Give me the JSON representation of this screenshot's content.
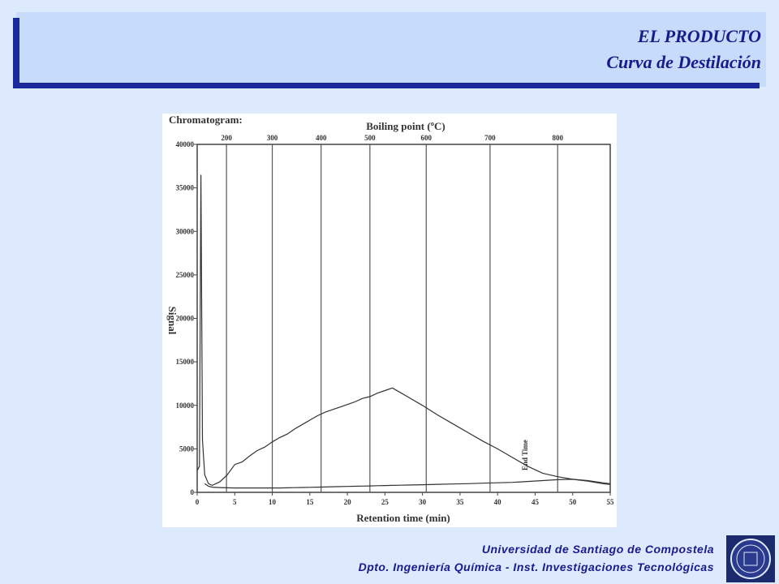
{
  "header": {
    "title": "EL PRODUCTO",
    "subtitle": "Curva de Destilación"
  },
  "footer": {
    "line1": "Universidad de Santiago de Compostela",
    "line2": "Dpto. Ingeniería Química - Inst. Investigaciones Tecnológicas"
  },
  "chart_data": {
    "type": "line",
    "title": "Chromatogram:",
    "x_label": "Retention time (min)",
    "y_label": "Signal",
    "x2_label": "Boiling point (ºC)",
    "annotation": "End Time",
    "x": [
      0,
      0.3,
      0.5,
      0.7,
      1,
      1.5,
      2,
      3,
      4,
      5,
      6,
      7,
      8,
      9,
      10,
      11,
      12,
      13,
      14,
      15,
      16,
      17,
      18,
      19,
      20,
      21,
      22,
      23,
      24,
      25,
      26,
      27,
      28,
      30,
      32,
      34,
      36,
      38,
      40,
      42,
      44,
      46,
      48,
      50,
      52,
      54,
      55
    ],
    "series": [
      {
        "color": "#333333",
        "values": [
          2500,
          3000,
          36500,
          6000,
          2000,
          1000,
          800,
          1200,
          2000,
          3200,
          3500,
          4200,
          4800,
          5200,
          5800,
          6300,
          6700,
          7300,
          7800,
          8300,
          8800,
          9200,
          9500,
          9800,
          10100,
          10400,
          10800,
          11000,
          11400,
          11700,
          12000,
          11500,
          11000,
          10000,
          8900,
          7900,
          6900,
          5900,
          5000,
          4000,
          3000,
          2200,
          1800,
          1500,
          1300,
          1000,
          900
        ]
      },
      {
        "color": "#333333",
        "values": [
          null,
          null,
          null,
          null,
          1000,
          700,
          600,
          550,
          520,
          500,
          500,
          500,
          500,
          500,
          500,
          500,
          520,
          540,
          560,
          580,
          600,
          620,
          640,
          660,
          680,
          700,
          720,
          740,
          760,
          780,
          800,
          820,
          840,
          880,
          920,
          960,
          1000,
          1050,
          1100,
          1150,
          1250,
          1350,
          1450,
          1500,
          1350,
          1100,
          1000
        ]
      }
    ],
    "xlim": [
      0,
      55
    ],
    "xticks": [
      0,
      5,
      10,
      15,
      20,
      25,
      30,
      35,
      40,
      45,
      50,
      55
    ],
    "ylim": [
      0,
      40000
    ],
    "yticks": [
      0,
      5000,
      10000,
      15000,
      20000,
      25000,
      30000,
      35000,
      40000
    ],
    "x2ticks": [
      {
        "value": 3.9,
        "label": "200"
      },
      {
        "value": 10,
        "label": "300"
      },
      {
        "value": 16.5,
        "label": "400"
      },
      {
        "value": 23,
        "label": "500"
      },
      {
        "value": 30.5,
        "label": "600"
      },
      {
        "value": 39,
        "label": "700"
      },
      {
        "value": 48,
        "label": "800"
      }
    ],
    "annotation_x": 44
  }
}
